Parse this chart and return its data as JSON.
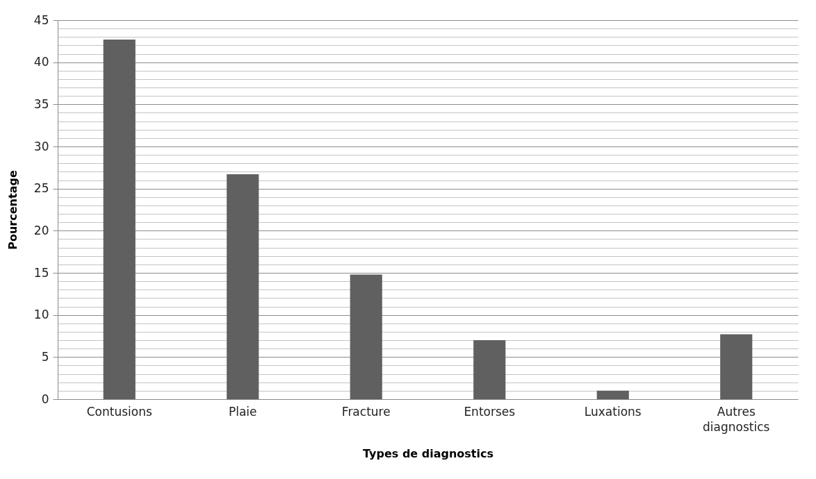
{
  "chart_data": {
    "type": "bar",
    "xlabel": "Types de diagnostics",
    "ylabel": "Pourcentage",
    "categories": [
      "Contusions",
      "Plaie",
      "Fracture",
      "Entorses",
      "Luxations",
      "Autres diagnostics"
    ],
    "values": [
      42.7,
      26.7,
      14.8,
      7.0,
      1.0,
      7.7
    ],
    "color": "#606060",
    "ylim": [
      0,
      45
    ],
    "yticks": [
      0,
      {
        "value": 1,
        "label": null
      },
      {
        "value": 2,
        "label": null
      },
      {
        "value": 3,
        "label": null
      },
      {
        "value": 4,
        "label": null
      },
      5,
      {
        "value": 6,
        "label": null
      },
      {
        "value": 7,
        "label": null
      },
      {
        "value": 8,
        "label": null
      },
      {
        "value": 9,
        "label": null
      },
      10,
      {
        "value": 11,
        "label": null
      },
      {
        "value": 12,
        "label": null
      },
      {
        "value": 13,
        "label": null
      },
      {
        "value": 14,
        "label": null
      },
      15,
      {
        "value": 16,
        "label": null
      },
      {
        "value": 17,
        "label": null
      },
      {
        "value": 18,
        "label": null
      },
      {
        "value": 19,
        "label": null
      },
      20,
      {
        "value": 21,
        "label": null
      },
      {
        "value": 22,
        "label": null
      },
      {
        "value": 23,
        "label": null
      },
      {
        "value": 24,
        "label": null
      },
      25,
      {
        "value": 26,
        "label": null
      },
      {
        "value": 27,
        "label": null
      },
      {
        "value": 28,
        "label": null
      },
      {
        "value": 29,
        "label": null
      },
      30,
      {
        "value": 31,
        "label": null
      },
      {
        "value": 32,
        "label": null
      },
      {
        "value": 33,
        "label": null
      },
      {
        "value": 34,
        "label": null
      },
      35,
      {
        "value": 36,
        "label": null
      },
      {
        "value": 37,
        "label": null
      },
      {
        "value": 38,
        "label": null
      },
      {
        "value": 39,
        "label": null
      },
      40,
      {
        "value": 41,
        "label": null
      },
      {
        "value": 42,
        "label": null
      },
      {
        "value": 43,
        "label": null
      },
      {
        "value": 44,
        "label": null
      },
      45
    ],
    "grid": "y"
  }
}
